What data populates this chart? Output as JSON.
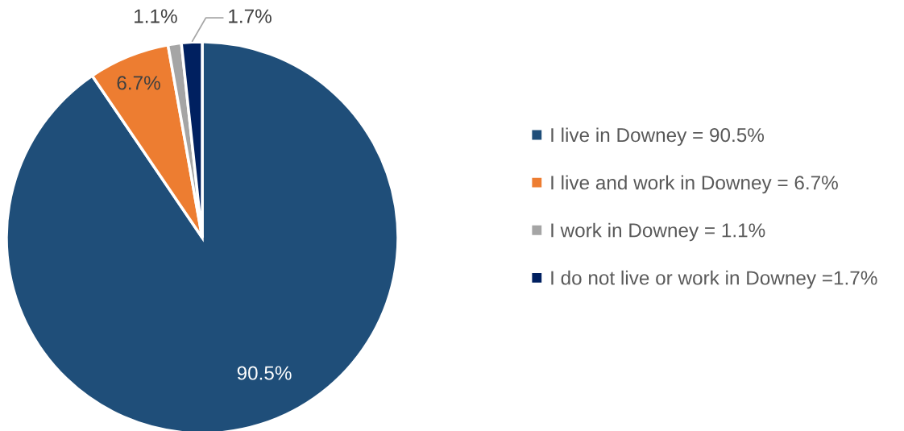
{
  "chart_data": {
    "type": "pie",
    "categories": [
      "I live in Downey = 90.5%",
      "I live and work in Downey = 6.7%",
      "I work in Downey = 1.1%",
      "I do not live or work in Downey =1.7%"
    ],
    "values": [
      90.5,
      6.7,
      1.1,
      1.7
    ],
    "colors": [
      "#1f4e79",
      "#ed7d31",
      "#a5a5a5",
      "#002060"
    ],
    "value_labels": [
      "90.5%",
      "6.7%",
      "1.1%",
      "1.7%"
    ],
    "legend": "right"
  }
}
